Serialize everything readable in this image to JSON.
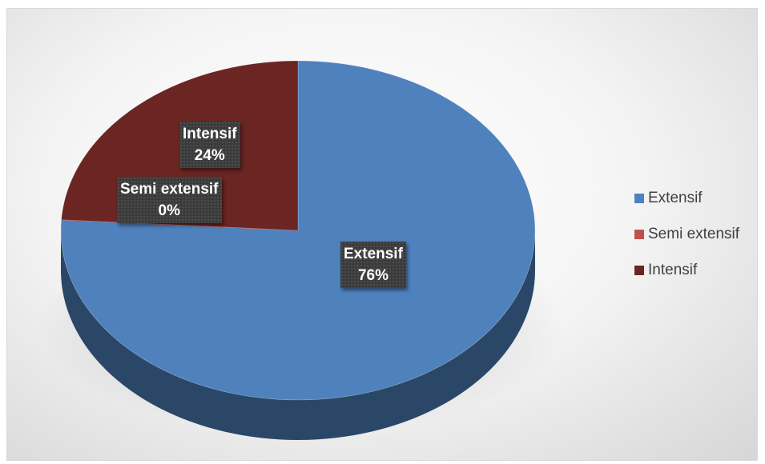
{
  "chart_data": {
    "type": "pie",
    "style": "3d",
    "categories": [
      "Extensif",
      "Semi extensif",
      "Intensif"
    ],
    "values": [
      76,
      0,
      24
    ],
    "unit": "%",
    "colors": [
      "#4f81bd",
      "#c0504d",
      "#6b2522"
    ],
    "data_labels": [
      {
        "name": "Extensif",
        "value": "76%"
      },
      {
        "name": "Semi extensif",
        "value": "0%"
      },
      {
        "name": "Intensif",
        "value": "24%"
      }
    ],
    "legend": {
      "position": "right",
      "items": [
        "Extensif",
        "Semi extensif",
        "Intensif"
      ]
    }
  }
}
